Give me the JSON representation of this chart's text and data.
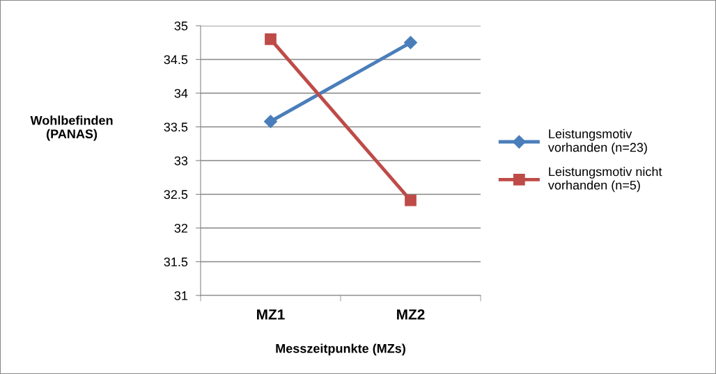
{
  "chart_data": {
    "type": "line",
    "xlabel": "Messzeitpunkte (MZs)",
    "ylabel": "Wohlbefinden\n(PANAS)",
    "categories": [
      "MZ1",
      "MZ2"
    ],
    "series": [
      {
        "name": "Leistungsmotiv\nvorhanden (n=23)",
        "color": "#4a7ebb",
        "marker": "diamond",
        "values": [
          33.58,
          34.75
        ]
      },
      {
        "name": "Leistungsmotiv nicht\nvorhanden (n=5)",
        "color": "#be4b48",
        "marker": "square",
        "values": [
          34.8,
          32.41
        ]
      }
    ],
    "ylim": [
      31,
      35
    ],
    "yticks": [
      31,
      31.5,
      32,
      32.5,
      33,
      33.5,
      34,
      34.5,
      35
    ],
    "grid": "y",
    "legend": "right",
    "line_style": "solid"
  }
}
